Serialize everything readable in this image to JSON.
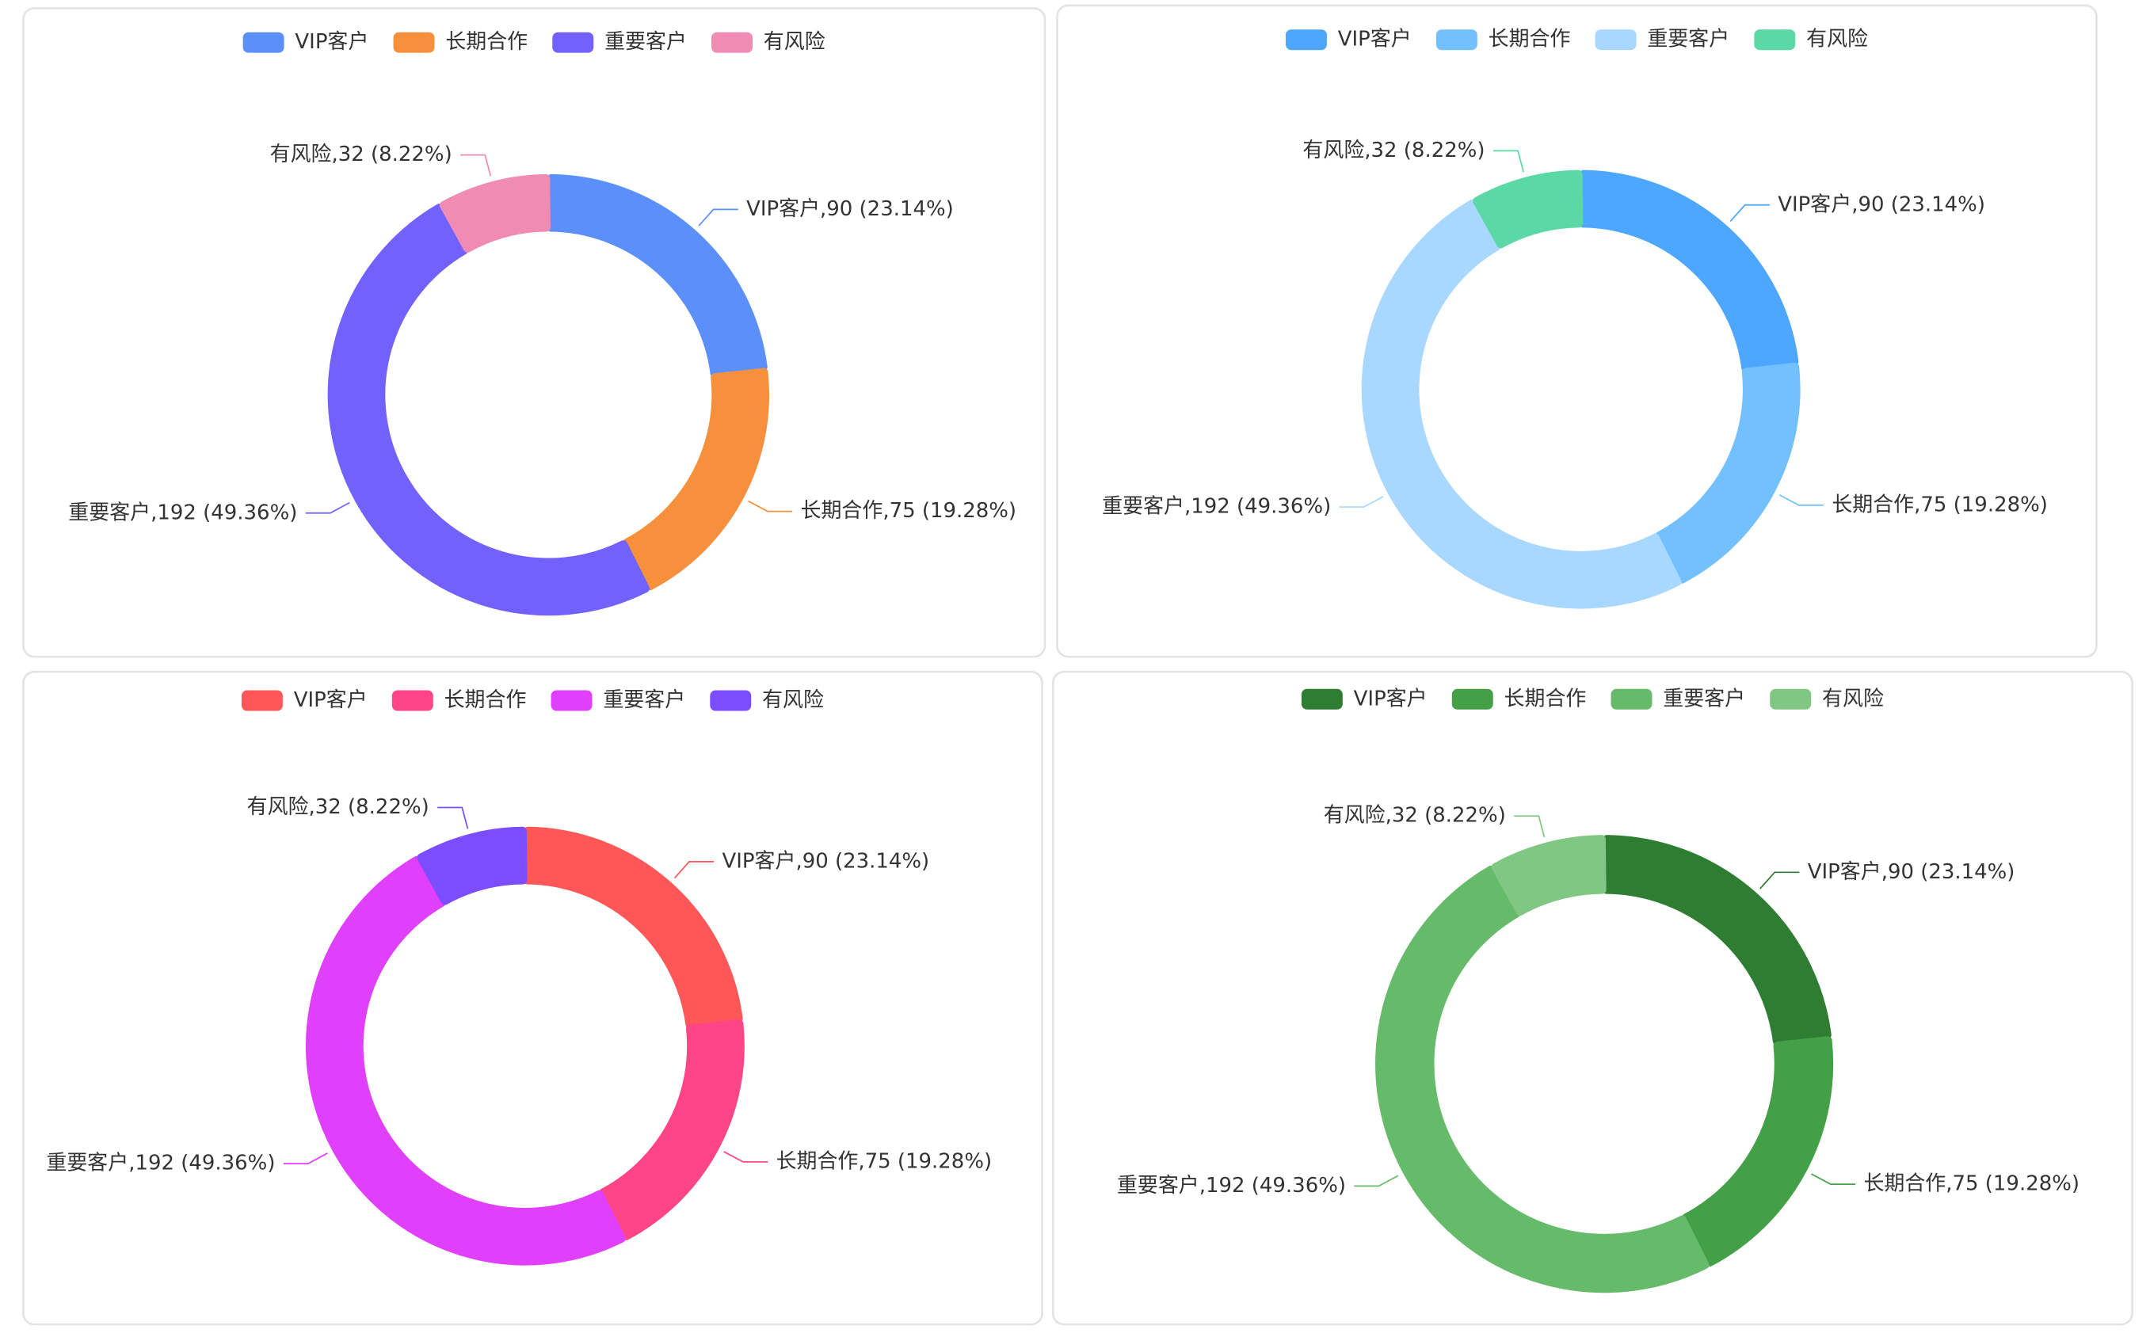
{
  "chart_data": [
    {
      "type": "pie",
      "categories": [
        "VIP客户",
        "长期合作",
        "重要客户",
        "有风险"
      ],
      "values": [
        90,
        75,
        192,
        32
      ],
      "value_labels": [
        "VIP客户,90 (23.14%)",
        "长期合作,75 (19.28%)",
        "重要客户,192 (49.36%)",
        "有风险,32 (8.22%)"
      ],
      "colors": [
        "#5b8ff9",
        "#f6903d",
        "#7262fd",
        "#f08bb4"
      ],
      "legend": "top"
    },
    {
      "type": "pie",
      "categories": [
        "VIP客户",
        "长期合作",
        "重要客户",
        "有风险"
      ],
      "values": [
        90,
        75,
        192,
        32
      ],
      "value_labels": [
        "VIP客户,90 (23.14%)",
        "长期合作,75 (19.28%)",
        "重要客户,192 (49.36%)",
        "有风险,32 (8.22%)"
      ],
      "colors": [
        "#4da6ff",
        "#73c0ff",
        "#a8d8ff",
        "#5ad8a6"
      ],
      "legend": "top"
    },
    {
      "type": "pie",
      "categories": [
        "VIP客户",
        "长期合作",
        "重要客户",
        "有风险"
      ],
      "values": [
        90,
        75,
        192,
        32
      ],
      "value_labels": [
        "VIP客户,90 (23.14%)",
        "长期合作,75 (19.28%)",
        "重要客户,192 (49.36%)",
        "有风险,32 (8.22%)"
      ],
      "colors": [
        "#ff5757",
        "#ff4585",
        "#e040fb",
        "#7c4dff"
      ],
      "legend": "top"
    },
    {
      "type": "pie",
      "categories": [
        "VIP客户",
        "长期合作",
        "重要客户",
        "有风险"
      ],
      "values": [
        90,
        75,
        192,
        32
      ],
      "value_labels": [
        "VIP客户,90 (23.14%)",
        "长期合作,75 (19.28%)",
        "重要客户,192 (49.36%)",
        "有风险,32 (8.22%)"
      ],
      "colors": [
        "#2e7d32",
        "#43a047",
        "#66bb6a",
        "#81c784"
      ],
      "legend": "top"
    }
  ]
}
